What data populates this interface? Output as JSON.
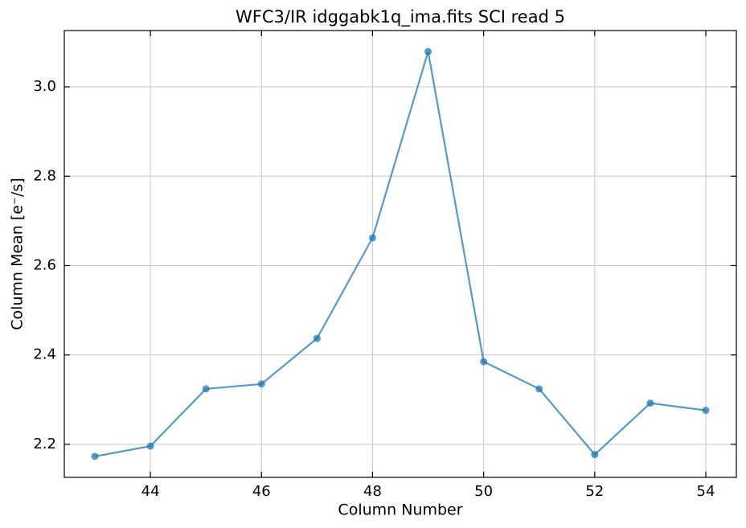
{
  "chart_data": {
    "type": "line",
    "title": "WFC3/IR idggabk1q_ima.fits SCI read 5",
    "xlabel": "Column Number",
    "ylabel": "Column Mean [e⁻/s]",
    "x": [
      43,
      44,
      45,
      46,
      47,
      48,
      49,
      50,
      51,
      52,
      53,
      54
    ],
    "series": [
      {
        "color": "#1f77b4",
        "values": [
          2.173,
          2.196,
          2.324,
          2.335,
          2.437,
          2.662,
          3.079,
          2.385,
          2.324,
          2.177,
          2.292,
          2.276
        ]
      }
    ],
    "xlim": [
      42.45,
      54.55
    ],
    "xticks": [
      44,
      46,
      48,
      50,
      52,
      54
    ],
    "ylim": [
      2.126,
      3.126
    ],
    "yticks": [
      2.2,
      2.4,
      2.6,
      2.8,
      {
        "value": 3,
        "label": "3.0"
      }
    ],
    "grid": true
  }
}
